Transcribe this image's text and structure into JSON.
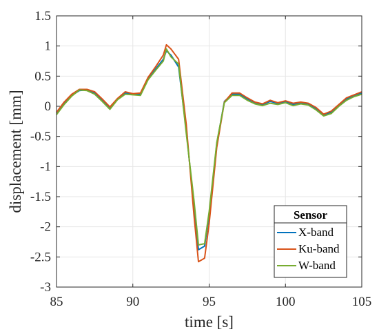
{
  "chart_data": {
    "type": "line",
    "xlabel": "time [s]",
    "ylabel": "displacement [mm]",
    "xlim": [
      85,
      105
    ],
    "ylim": [
      -3,
      1.5
    ],
    "xticks": [
      85,
      90,
      95,
      100,
      105
    ],
    "yticks": [
      -3,
      -2.5,
      -2,
      -1.5,
      -1,
      -0.5,
      0,
      0.5,
      1,
      1.5
    ],
    "xtick_labels": [
      "85",
      "90",
      "95",
      "100",
      "105"
    ],
    "ytick_labels": [
      "-3",
      "-2.5",
      "-2",
      "-1.5",
      "-1",
      "-0.5",
      "0",
      "0.5",
      "1",
      "1.5"
    ],
    "grid": true,
    "legend": {
      "title": "Sensor",
      "placement": "bottom-right"
    },
    "x": [
      85,
      85.5,
      86,
      86.5,
      87,
      87.5,
      88,
      88.5,
      89,
      89.5,
      90,
      90.5,
      91,
      91.5,
      92,
      92.2,
      92.5,
      93,
      93.5,
      94,
      94.3,
      94.7,
      95,
      95.5,
      96,
      96.5,
      97,
      97.5,
      98,
      98.5,
      99,
      99.5,
      100,
      100.5,
      101,
      101.5,
      102,
      102.5,
      103,
      103.5,
      104,
      104.5,
      105
    ],
    "series": [
      {
        "name": "X-band",
        "color": "#0072BD",
        "values": [
          -0.12,
          0.05,
          0.18,
          0.26,
          0.27,
          0.22,
          0.1,
          -0.02,
          0.12,
          0.22,
          0.2,
          0.2,
          0.45,
          0.62,
          0.78,
          0.92,
          0.85,
          0.65,
          -0.4,
          -1.65,
          -2.38,
          -2.32,
          -1.8,
          -0.62,
          0.08,
          0.2,
          0.2,
          0.12,
          0.06,
          0.03,
          0.08,
          0.05,
          0.08,
          0.03,
          0.06,
          0.04,
          -0.04,
          -0.14,
          -0.1,
          0.02,
          0.12,
          0.18,
          0.22
        ]
      },
      {
        "name": "Ku-band",
        "color": "#D95319",
        "values": [
          -0.1,
          0.07,
          0.2,
          0.28,
          0.28,
          0.24,
          0.12,
          -0.01,
          0.13,
          0.24,
          0.21,
          0.22,
          0.48,
          0.66,
          0.85,
          1.02,
          0.95,
          0.78,
          -0.3,
          -1.8,
          -2.58,
          -2.52,
          -1.95,
          -0.68,
          0.07,
          0.22,
          0.22,
          0.14,
          0.07,
          0.04,
          0.1,
          0.06,
          0.09,
          0.05,
          0.07,
          0.05,
          -0.02,
          -0.13,
          -0.08,
          0.03,
          0.14,
          0.19,
          0.24
        ]
      },
      {
        "name": "W-band",
        "color": "#77AC30",
        "values": [
          -0.14,
          0.03,
          0.17,
          0.27,
          0.26,
          0.2,
          0.08,
          -0.05,
          0.11,
          0.2,
          0.19,
          0.18,
          0.44,
          0.6,
          0.75,
          0.95,
          0.82,
          0.7,
          -0.45,
          -1.55,
          -2.3,
          -2.28,
          -1.75,
          -0.6,
          0.06,
          0.18,
          0.18,
          0.1,
          0.04,
          0.01,
          0.05,
          0.03,
          0.06,
          0.01,
          0.04,
          0.02,
          -0.06,
          -0.16,
          -0.12,
          0.0,
          0.1,
          0.16,
          0.2
        ]
      }
    ]
  }
}
